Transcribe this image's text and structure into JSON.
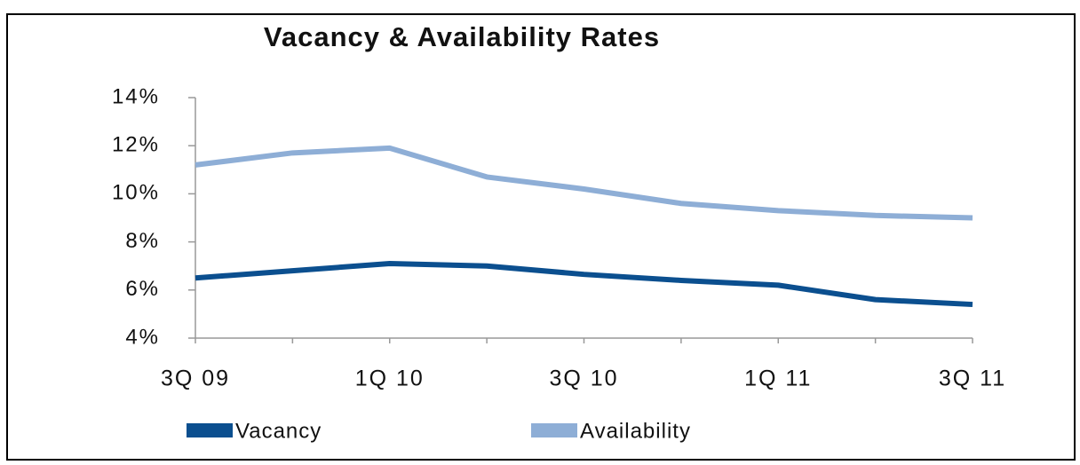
{
  "chart_data": {
    "type": "line",
    "title": "Vacancy & Availability Rates",
    "categories": [
      "3Q 09",
      null,
      "1Q 10",
      null,
      "3Q 10",
      null,
      "1Q 11",
      null,
      "3Q 11"
    ],
    "series": [
      {
        "name": "Vacancy",
        "color": "#0b4f8f",
        "values": [
          6.5,
          6.8,
          7.1,
          7.0,
          6.65,
          6.4,
          6.2,
          5.6,
          5.4
        ]
      },
      {
        "name": "Availability",
        "color": "#8eaed6",
        "values": [
          11.2,
          11.7,
          11.9,
          10.7,
          10.2,
          9.6,
          9.3,
          9.1,
          9.0
        ]
      }
    ],
    "ylim": [
      4,
      14
    ],
    "yticks": [
      {
        "value": 4,
        "label": "4%"
      },
      {
        "value": 6,
        "label": "6%"
      },
      {
        "value": 8,
        "label": "8%"
      },
      {
        "value": 10,
        "label": "10%"
      },
      {
        "value": 12,
        "label": "12%"
      },
      {
        "value": 14,
        "label": "14%"
      }
    ],
    "legend": "bottom"
  }
}
